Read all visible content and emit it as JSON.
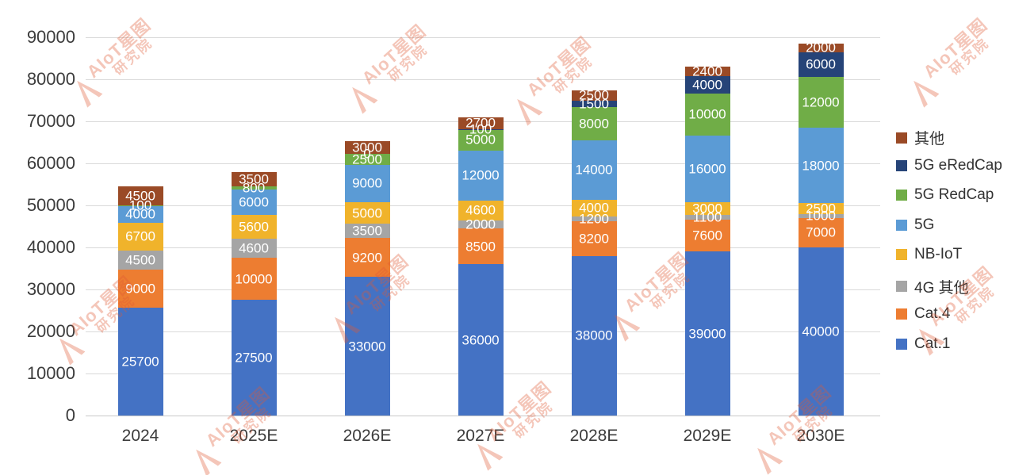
{
  "watermark": {
    "line1": "AIoT星图",
    "line2": "研究院"
  },
  "chart_data": {
    "type": "bar",
    "stacked": true,
    "title": "",
    "xlabel": "",
    "ylabel": "",
    "categories": [
      "2024",
      "2025E",
      "2026E",
      "2027E",
      "2028E",
      "2029E",
      "2030E"
    ],
    "series": [
      {
        "name": "Cat.1",
        "color": "#4472C4",
        "values": [
          25700,
          27500,
          33000,
          36000,
          38000,
          39000,
          40000
        ],
        "labels": [
          "25700",
          "27500",
          "33000",
          "36000",
          "38000",
          "39000",
          "40000"
        ]
      },
      {
        "name": "Cat.4",
        "color": "#ED7D31",
        "values": [
          9000,
          10000,
          9200,
          8500,
          8200,
          7600,
          7000
        ],
        "labels": [
          "9000",
          "10000",
          "9200",
          "8500",
          "8200",
          "7600",
          "7000"
        ]
      },
      {
        "name": "4G 其他",
        "color": "#A5A5A5",
        "values": [
          4500,
          4600,
          3500,
          2000,
          1200,
          1100,
          1000
        ],
        "labels": [
          "4500",
          "4600",
          "3500",
          "2000",
          "1200",
          "1100",
          "1000"
        ]
      },
      {
        "name": "NB-IoT",
        "color": "#F0B32B",
        "values": [
          6700,
          5600,
          5000,
          4600,
          4000,
          3000,
          2500
        ],
        "labels": [
          "6700",
          "5600",
          "5000",
          "4600",
          "4000",
          "3000",
          "2500"
        ]
      },
      {
        "name": "5G",
        "color": "#5B9BD5",
        "values": [
          4000,
          6000,
          9000,
          12000,
          14000,
          16000,
          18000
        ],
        "labels": [
          "4000",
          "6000",
          "9000",
          "12000",
          "14000",
          "16000",
          "18000"
        ]
      },
      {
        "name": "5G RedCap",
        "color": "#70AD47",
        "values": [
          100,
          800,
          2500,
          5000,
          8000,
          10000,
          12000
        ],
        "labels": [
          "100",
          "800",
          "2500",
          "5000",
          "8000",
          "10000",
          "12000"
        ]
      },
      {
        "name": "5G eRedCap",
        "color": "#264478",
        "values": [
          0,
          0,
          0,
          100,
          1500,
          4000,
          6000
        ],
        "labels": [
          "",
          "",
          "0",
          "100",
          "1500",
          "4000",
          "6000"
        ]
      },
      {
        "name": "其他",
        "color": "#9A4A26",
        "values": [
          4500,
          3500,
          3000,
          2700,
          2500,
          2400,
          2000
        ],
        "labels": [
          "4500",
          "3500",
          "3000",
          "2700",
          "2500",
          "2400",
          "2000"
        ]
      }
    ],
    "totals": [
      54500,
      58000,
      65200,
      70900,
      77400,
      83100,
      88500
    ],
    "ylim": [
      0,
      90000
    ],
    "y_ticks": [
      "0",
      "10000",
      "20000",
      "30000",
      "40000",
      "50000",
      "60000",
      "70000",
      "80000",
      "90000"
    ],
    "grid": true,
    "legend_position": "right",
    "legend_order_top_to_bottom": [
      "其他",
      "5G eRedCap",
      "5G RedCap",
      "5G",
      "NB-IoT",
      "4G 其他",
      "Cat.4",
      "Cat.1"
    ]
  }
}
